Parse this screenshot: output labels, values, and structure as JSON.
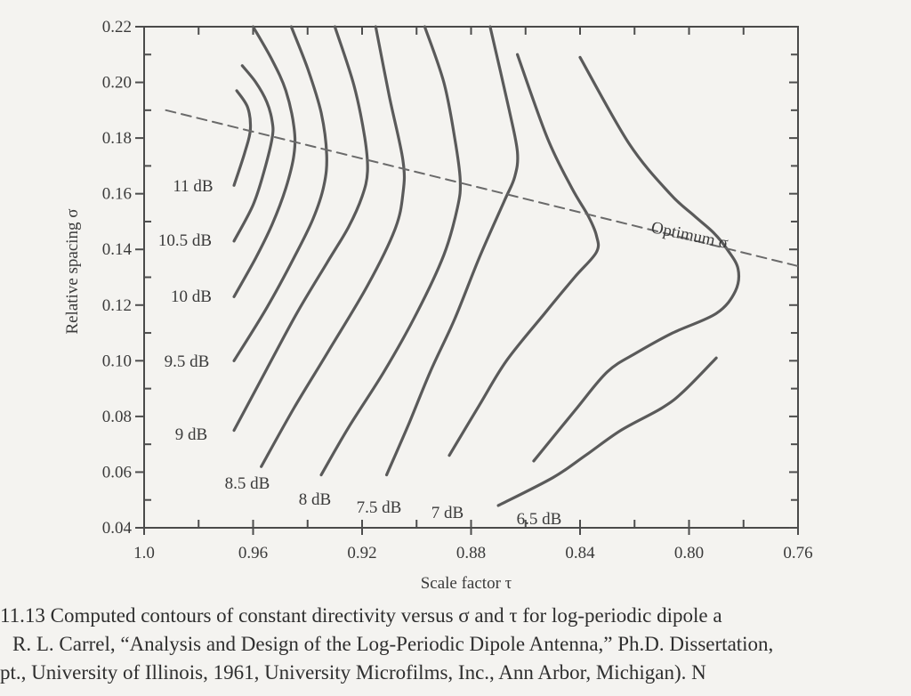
{
  "chart_data": {
    "type": "line",
    "title": "",
    "xlabel": "Scale factor τ",
    "ylabel": "Relative spacing σ",
    "xlim": [
      1.0,
      0.76
    ],
    "ylim": [
      0.04,
      0.22
    ],
    "x_tick_labels": [
      "1.0",
      "0.96",
      "0.92",
      "0.88",
      "0.84",
      "0.80",
      "0.76"
    ],
    "x_ticks": [
      1.0,
      0.96,
      0.92,
      0.88,
      0.84,
      0.8,
      0.76
    ],
    "y_tick_labels": [
      "0.04",
      "0.06",
      "0.08",
      "0.10",
      "0.12",
      "0.14",
      "0.16",
      "0.18",
      "0.20",
      "0.22"
    ],
    "y_ticks": [
      0.04,
      0.06,
      0.08,
      0.1,
      0.12,
      0.14,
      0.16,
      0.18,
      0.2,
      0.22
    ],
    "grid": false,
    "series": [
      {
        "name": "11 dB",
        "label": "11 dB",
        "x": [
          0.967,
          0.963,
          0.961,
          0.962,
          0.966
        ],
        "y": [
          0.163,
          0.175,
          0.183,
          0.191,
          0.197
        ]
      },
      {
        "name": "10.5 dB",
        "label": "10.5 dB",
        "x": [
          0.967,
          0.96,
          0.956,
          0.953,
          0.953,
          0.955,
          0.959,
          0.964
        ],
        "y": [
          0.143,
          0.156,
          0.168,
          0.18,
          0.186,
          0.193,
          0.2,
          0.206
        ]
      },
      {
        "name": "10 dB",
        "label": "10 dB",
        "x": [
          0.967,
          0.959,
          0.953,
          0.948,
          0.945,
          0.945,
          0.948,
          0.953,
          0.96
        ],
        "y": [
          0.123,
          0.137,
          0.149,
          0.162,
          0.174,
          0.184,
          0.197,
          0.208,
          0.22
        ]
      },
      {
        "name": "9.5 dB",
        "label": "9.5 dB",
        "x": [
          0.967,
          0.955,
          0.945,
          0.938,
          0.934,
          0.933,
          0.935,
          0.94,
          0.946
        ],
        "y": [
          0.1,
          0.119,
          0.137,
          0.151,
          0.163,
          0.174,
          0.189,
          0.205,
          0.22
        ]
      },
      {
        "name": "9 dB",
        "label": "9 dB",
        "x": [
          0.967,
          0.955,
          0.944,
          0.933,
          0.925,
          0.92,
          0.918,
          0.919,
          0.923,
          0.93
        ],
        "y": [
          0.075,
          0.097,
          0.117,
          0.135,
          0.148,
          0.159,
          0.168,
          0.18,
          0.199,
          0.22
        ]
      },
      {
        "name": "8.5 dB",
        "label": "8.5 dB",
        "x": [
          0.957,
          0.945,
          0.932,
          0.918,
          0.908,
          0.905,
          0.905,
          0.91,
          0.915
        ],
        "y": [
          0.062,
          0.083,
          0.104,
          0.127,
          0.147,
          0.16,
          0.172,
          0.195,
          0.22
        ]
      },
      {
        "name": "8 dB",
        "label": "8 dB",
        "x": [
          0.935,
          0.925,
          0.912,
          0.9,
          0.89,
          0.885,
          0.884,
          0.886,
          0.89,
          0.897
        ],
        "y": [
          0.059,
          0.076,
          0.096,
          0.117,
          0.138,
          0.155,
          0.165,
          0.18,
          0.2,
          0.22
        ]
      },
      {
        "name": "7.5 dB",
        "label": "7.5 dB",
        "x": [
          0.911,
          0.903,
          0.895,
          0.886,
          0.877,
          0.868,
          0.864,
          0.863,
          0.866,
          0.873
        ],
        "y": [
          0.059,
          0.077,
          0.096,
          0.115,
          0.137,
          0.157,
          0.166,
          0.175,
          0.19,
          0.22
        ]
      },
      {
        "name": "7 dB",
        "label": "7 dB",
        "x": [
          0.888,
          0.877,
          0.867,
          0.853,
          0.842,
          0.834,
          0.834,
          0.837,
          0.843,
          0.852,
          0.863
        ],
        "y": [
          0.066,
          0.084,
          0.1,
          0.117,
          0.13,
          0.139,
          0.145,
          0.152,
          0.162,
          0.18,
          0.21
        ]
      },
      {
        "name": "6.5 dB",
        "label": "6.5 dB",
        "x": [
          0.857,
          0.842,
          0.83,
          0.819,
          0.806,
          0.79,
          0.783,
          0.782,
          0.786,
          0.791,
          0.798,
          0.807,
          0.822,
          0.84
        ],
        "y": [
          0.064,
          0.082,
          0.096,
          0.103,
          0.11,
          0.117,
          0.125,
          0.133,
          0.14,
          0.146,
          0.152,
          0.16,
          0.178,
          0.209
        ]
      },
      {
        "name": "6.5 dB lower branch",
        "label": "",
        "x": [
          0.87,
          0.85,
          0.838,
          0.825,
          0.81,
          0.802,
          0.79
        ],
        "y": [
          0.048,
          0.058,
          0.066,
          0.075,
          0.083,
          0.089,
          0.101
        ]
      },
      {
        "name": "Optimum σ",
        "label": "Optimum σ",
        "style": "dashed",
        "x": [
          0.992,
          0.76
        ],
        "y": [
          0.19,
          0.134
        ]
      }
    ]
  },
  "caption": {
    "line1": "11.13   Computed contours of constant directivity versus σ and τ for log-periodic dipole a",
    "line2": "R. L. Carrel, “Analysis and Design of the Log-Periodic Dipole Antenna,” Ph.D. Dissertation,",
    "line3": "pt., University of Illinois, 1961, University Microfilms, Inc., Ann Arbor, Michigan). N"
  }
}
